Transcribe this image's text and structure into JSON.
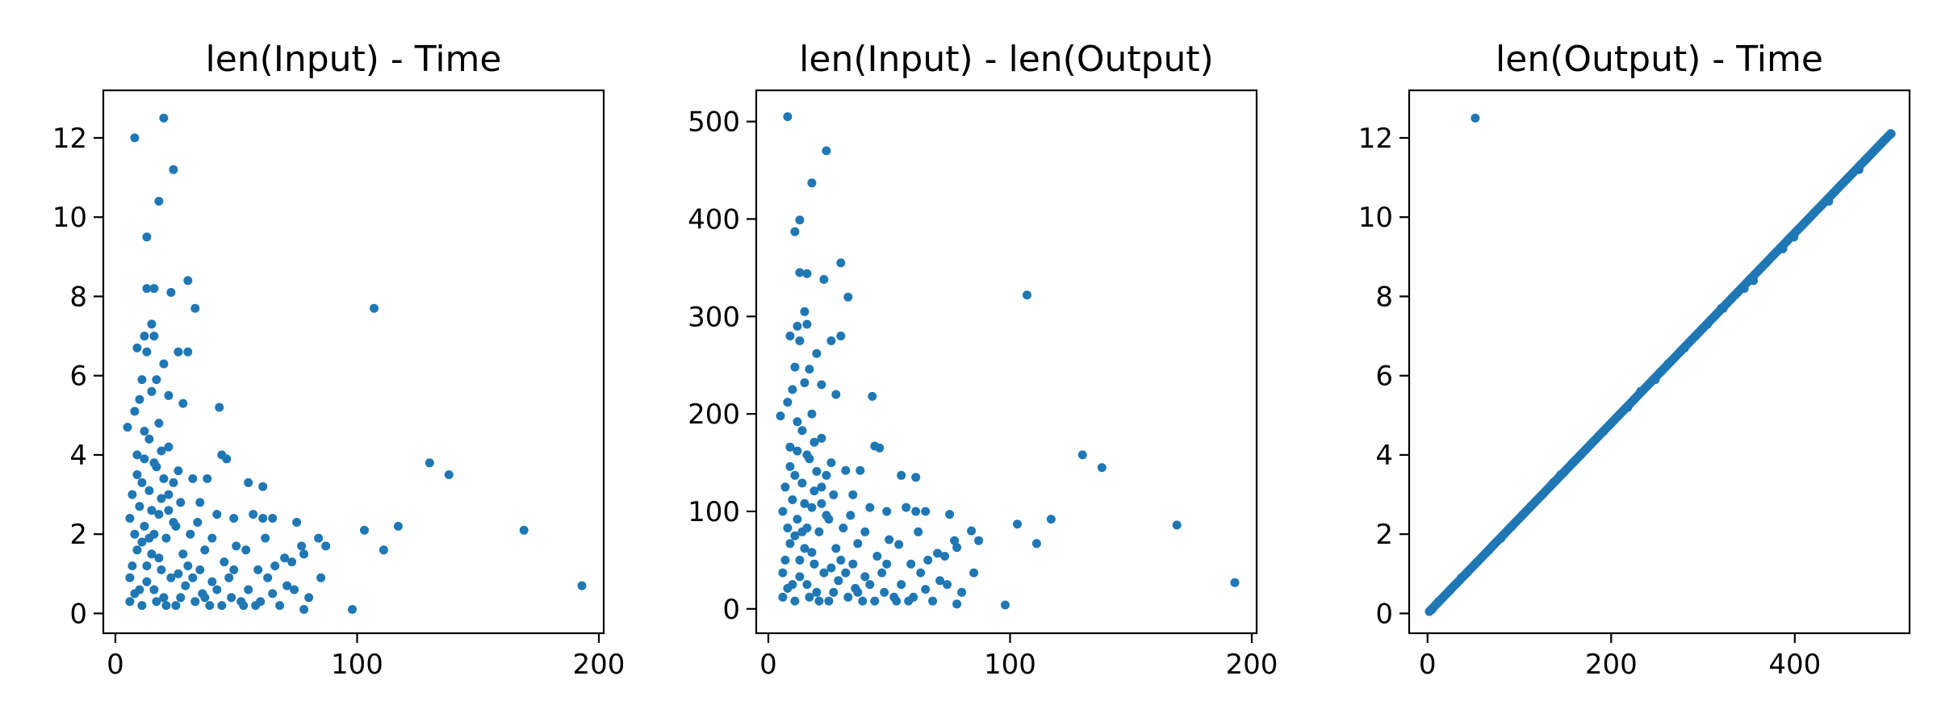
{
  "chart_data": [
    {
      "type": "scatter",
      "title": "len(Input) - Time",
      "xlabel": "",
      "ylabel": "",
      "xlim": [
        -5,
        202
      ],
      "ylim": [
        -0.5,
        13.2
      ],
      "xticks": [
        0,
        100,
        200
      ],
      "yticks": [
        0,
        2,
        4,
        6,
        8,
        10,
        12
      ],
      "grid": false,
      "color": "#1f77b4",
      "points": [
        [
          8,
          12.0
        ],
        [
          20,
          12.5
        ],
        [
          24,
          11.2
        ],
        [
          18,
          10.4
        ],
        [
          13,
          9.5
        ],
        [
          30,
          8.4
        ],
        [
          13,
          8.2
        ],
        [
          16,
          8.2
        ],
        [
          23,
          8.1
        ],
        [
          33,
          7.7
        ],
        [
          107,
          7.7
        ],
        [
          15,
          7.3
        ],
        [
          12,
          7.0
        ],
        [
          16,
          7.0
        ],
        [
          9,
          6.7
        ],
        [
          26,
          6.6
        ],
        [
          30,
          6.6
        ],
        [
          13,
          6.6
        ],
        [
          20,
          6.3
        ],
        [
          11,
          5.9
        ],
        [
          17,
          5.9
        ],
        [
          22,
          5.5
        ],
        [
          10,
          5.4
        ],
        [
          15,
          5.6
        ],
        [
          28,
          5.3
        ],
        [
          43,
          5.2
        ],
        [
          8,
          5.1
        ],
        [
          5,
          4.7
        ],
        [
          12,
          4.6
        ],
        [
          18,
          4.8
        ],
        [
          130,
          3.8
        ],
        [
          138,
          3.5
        ],
        [
          44,
          4.0
        ],
        [
          38,
          3.4
        ],
        [
          46,
          3.9
        ],
        [
          55,
          3.3
        ],
        [
          61,
          3.2
        ],
        [
          26,
          3.6
        ],
        [
          32,
          3.4
        ],
        [
          9,
          3.5
        ],
        [
          22,
          3.0
        ],
        [
          35,
          2.8
        ],
        [
          42,
          2.5
        ],
        [
          49,
          2.4
        ],
        [
          57,
          2.5
        ],
        [
          61,
          2.4
        ],
        [
          65,
          2.4
        ],
        [
          75,
          2.3
        ],
        [
          117,
          2.2
        ],
        [
          169,
          2.1
        ],
        [
          103,
          2.1
        ],
        [
          111,
          1.6
        ],
        [
          84,
          1.9
        ],
        [
          87,
          1.7
        ],
        [
          77,
          1.7
        ],
        [
          62,
          1.9
        ],
        [
          70,
          1.4
        ],
        [
          78,
          1.5
        ],
        [
          54,
          1.6
        ],
        [
          66,
          1.2
        ],
        [
          73,
          1.3
        ],
        [
          59,
          1.1
        ],
        [
          45,
          1.3
        ],
        [
          49,
          1.1
        ],
        [
          85,
          0.9
        ],
        [
          193,
          0.7
        ],
        [
          98,
          0.1
        ],
        [
          78,
          0.1
        ],
        [
          65,
          0.5
        ],
        [
          71,
          0.7
        ],
        [
          55,
          0.6
        ],
        [
          40,
          0.8
        ],
        [
          35,
          1.1
        ],
        [
          28,
          1.5
        ],
        [
          25,
          2.2
        ],
        [
          31,
          2.0
        ],
        [
          37,
          1.6
        ],
        [
          48,
          0.4
        ],
        [
          58,
          0.2
        ],
        [
          52,
          0.3
        ],
        [
          44,
          0.2
        ],
        [
          27,
          0.4
        ],
        [
          6,
          0.3
        ],
        [
          7,
          1.2
        ],
        [
          6,
          2.4
        ],
        [
          6,
          0.9
        ],
        [
          7,
          3.0
        ],
        [
          8,
          0.5
        ],
        [
          10,
          2.7
        ],
        [
          11,
          1.8
        ],
        [
          12,
          3.9
        ],
        [
          13,
          1.2
        ],
        [
          14,
          4.4
        ],
        [
          15,
          2.6
        ],
        [
          16,
          0.6
        ],
        [
          17,
          3.7
        ],
        [
          18,
          1.4
        ],
        [
          19,
          2.9
        ],
        [
          20,
          0.4
        ],
        [
          21,
          1.9
        ],
        [
          22,
          4.2
        ],
        [
          23,
          0.9
        ],
        [
          24,
          2.3
        ],
        [
          26,
          1.0
        ],
        [
          29,
          0.7
        ],
        [
          33,
          0.3
        ],
        [
          36,
          0.5
        ],
        [
          39,
          0.2
        ],
        [
          9,
          1.6
        ],
        [
          11,
          0.2
        ],
        [
          14,
          3.1
        ],
        [
          16,
          2.0
        ],
        [
          19,
          4.1
        ],
        [
          21,
          0.2
        ],
        [
          24,
          3.3
        ],
        [
          12,
          2.2
        ],
        [
          13,
          0.8
        ],
        [
          15,
          1.5
        ],
        [
          17,
          0.3
        ],
        [
          18,
          2.5
        ],
        [
          20,
          3.4
        ],
        [
          10,
          0.6
        ],
        [
          8,
          2.0
        ],
        [
          9,
          4.0
        ],
        [
          11,
          3.3
        ],
        [
          14,
          1.9
        ],
        [
          16,
          3.8
        ],
        [
          19,
          1.1
        ],
        [
          22,
          2.6
        ],
        [
          25,
          0.2
        ],
        [
          27,
          2.8
        ],
        [
          30,
          1.2
        ],
        [
          32,
          0.9
        ],
        [
          34,
          2.3
        ],
        [
          37,
          0.4
        ],
        [
          40,
          1.9
        ],
        [
          42,
          0.6
        ],
        [
          47,
          0.9
        ],
        [
          50,
          1.7
        ],
        [
          53,
          0.2
        ],
        [
          60,
          0.3
        ],
        [
          63,
          0.9
        ],
        [
          68,
          0.2
        ],
        [
          74,
          0.6
        ],
        [
          80,
          0.4
        ]
      ]
    },
    {
      "type": "scatter",
      "title": "len(Input) - len(Output)",
      "xlabel": "",
      "ylabel": "",
      "xlim": [
        -5,
        202
      ],
      "ylim": [
        -25,
        532
      ],
      "xticks": [
        0,
        100,
        200
      ],
      "yticks": [
        0,
        100,
        200,
        300,
        400,
        500
      ],
      "grid": false,
      "color": "#1f77b4",
      "points": [
        [
          8,
          505
        ],
        [
          24,
          470
        ],
        [
          18,
          437
        ],
        [
          13,
          399
        ],
        [
          11,
          387
        ],
        [
          30,
          355
        ],
        [
          13,
          345
        ],
        [
          16,
          344
        ],
        [
          23,
          338
        ],
        [
          33,
          320
        ],
        [
          107,
          322
        ],
        [
          15,
          305
        ],
        [
          12,
          290
        ],
        [
          16,
          292
        ],
        [
          9,
          280
        ],
        [
          26,
          275
        ],
        [
          30,
          280
        ],
        [
          13,
          275
        ],
        [
          20,
          262
        ],
        [
          11,
          248
        ],
        [
          17,
          246
        ],
        [
          22,
          230
        ],
        [
          10,
          225
        ],
        [
          15,
          232
        ],
        [
          28,
          220
        ],
        [
          43,
          218
        ],
        [
          8,
          212
        ],
        [
          5,
          198
        ],
        [
          12,
          192
        ],
        [
          18,
          200
        ],
        [
          130,
          158
        ],
        [
          138,
          145
        ],
        [
          44,
          167
        ],
        [
          38,
          142
        ],
        [
          46,
          165
        ],
        [
          55,
          137
        ],
        [
          61,
          135
        ],
        [
          26,
          150
        ],
        [
          32,
          142
        ],
        [
          9,
          146
        ],
        [
          22,
          125
        ],
        [
          35,
          117
        ],
        [
          42,
          104
        ],
        [
          49,
          100
        ],
        [
          57,
          104
        ],
        [
          61,
          100
        ],
        [
          65,
          100
        ],
        [
          75,
          97
        ],
        [
          117,
          92
        ],
        [
          169,
          86
        ],
        [
          103,
          87
        ],
        [
          111,
          67
        ],
        [
          84,
          80
        ],
        [
          87,
          70
        ],
        [
          77,
          70
        ],
        [
          62,
          79
        ],
        [
          70,
          57
        ],
        [
          78,
          63
        ],
        [
          54,
          66
        ],
        [
          66,
          50
        ],
        [
          73,
          54
        ],
        [
          59,
          46
        ],
        [
          45,
          54
        ],
        [
          49,
          46
        ],
        [
          85,
          37
        ],
        [
          193,
          27
        ],
        [
          98,
          4
        ],
        [
          78,
          5
        ],
        [
          65,
          20
        ],
        [
          71,
          29
        ],
        [
          55,
          25
        ],
        [
          40,
          33
        ],
        [
          35,
          46
        ],
        [
          28,
          62
        ],
        [
          25,
          92
        ],
        [
          31,
          83
        ],
        [
          37,
          67
        ],
        [
          48,
          17
        ],
        [
          58,
          8
        ],
        [
          52,
          12
        ],
        [
          44,
          8
        ],
        [
          27,
          17
        ],
        [
          6,
          12
        ],
        [
          7,
          50
        ],
        [
          6,
          100
        ],
        [
          6,
          37
        ],
        [
          7,
          125
        ],
        [
          8,
          21
        ],
        [
          10,
          112
        ],
        [
          11,
          75
        ],
        [
          12,
          162
        ],
        [
          13,
          50
        ],
        [
          14,
          183
        ],
        [
          15,
          108
        ],
        [
          16,
          25
        ],
        [
          17,
          154
        ],
        [
          18,
          58
        ],
        [
          19,
          121
        ],
        [
          20,
          17
        ],
        [
          21,
          79
        ],
        [
          22,
          175
        ],
        [
          23,
          37
        ],
        [
          24,
          96
        ],
        [
          26,
          42
        ],
        [
          29,
          29
        ],
        [
          33,
          12
        ],
        [
          36,
          21
        ],
        [
          39,
          8
        ],
        [
          9,
          67
        ],
        [
          11,
          8
        ],
        [
          14,
          129
        ],
        [
          16,
          83
        ],
        [
          19,
          171
        ],
        [
          21,
          8
        ],
        [
          24,
          137
        ],
        [
          12,
          92
        ],
        [
          13,
          33
        ],
        [
          15,
          62
        ],
        [
          17,
          12
        ],
        [
          18,
          104
        ],
        [
          20,
          141
        ],
        [
          10,
          25
        ],
        [
          8,
          83
        ],
        [
          9,
          166
        ],
        [
          11,
          137
        ],
        [
          14,
          79
        ],
        [
          16,
          158
        ],
        [
          19,
          46
        ],
        [
          22,
          108
        ],
        [
          25,
          8
        ],
        [
          27,
          117
        ],
        [
          30,
          50
        ],
        [
          32,
          37
        ],
        [
          34,
          96
        ],
        [
          37,
          17
        ],
        [
          40,
          79
        ],
        [
          42,
          25
        ],
        [
          47,
          37
        ],
        [
          50,
          71
        ],
        [
          53,
          8
        ],
        [
          60,
          12
        ],
        [
          63,
          37
        ],
        [
          68,
          8
        ],
        [
          74,
          25
        ],
        [
          80,
          17
        ]
      ]
    },
    {
      "type": "scatter",
      "title": "len(Output) - Time",
      "xlabel": "",
      "ylabel": "",
      "xlim": [
        -20,
        525
      ],
      "ylim": [
        -0.5,
        13.2
      ],
      "xticks": [
        0,
        200,
        400
      ],
      "yticks": [
        0,
        2,
        4,
        6,
        8,
        10,
        12
      ],
      "grid": false,
      "color": "#1f77b4",
      "linear_trend": {
        "x_start": 2,
        "x_end": 505,
        "slope": 0.024
      },
      "points": [
        [
          52,
          12.5
        ],
        [
          505,
          12.1
        ],
        [
          470,
          11.2
        ],
        [
          437,
          10.4
        ],
        [
          399,
          9.5
        ],
        [
          387,
          9.2
        ],
        [
          355,
          8.4
        ],
        [
          345,
          8.2
        ],
        [
          338,
          8.1
        ],
        [
          322,
          7.7
        ],
        [
          320,
          7.7
        ],
        [
          305,
          7.3
        ],
        [
          292,
          7.0
        ],
        [
          280,
          6.7
        ],
        [
          275,
          6.6
        ],
        [
          262,
          6.3
        ],
        [
          248,
          5.9
        ],
        [
          232,
          5.6
        ],
        [
          225,
          5.4
        ],
        [
          218,
          5.2
        ],
        [
          200,
          4.8
        ],
        [
          192,
          4.6
        ],
        [
          167,
          4.0
        ],
        [
          158,
          3.8
        ],
        [
          145,
          3.5
        ],
        [
          137,
          3.3
        ],
        [
          125,
          3.0
        ],
        [
          104,
          2.5
        ],
        [
          92,
          2.2
        ],
        [
          80,
          1.9
        ],
        [
          67,
          1.6
        ],
        [
          54,
          1.3
        ],
        [
          37,
          0.9
        ],
        [
          25,
          0.6
        ],
        [
          12,
          0.3
        ],
        [
          5,
          0.1
        ]
      ]
    }
  ]
}
